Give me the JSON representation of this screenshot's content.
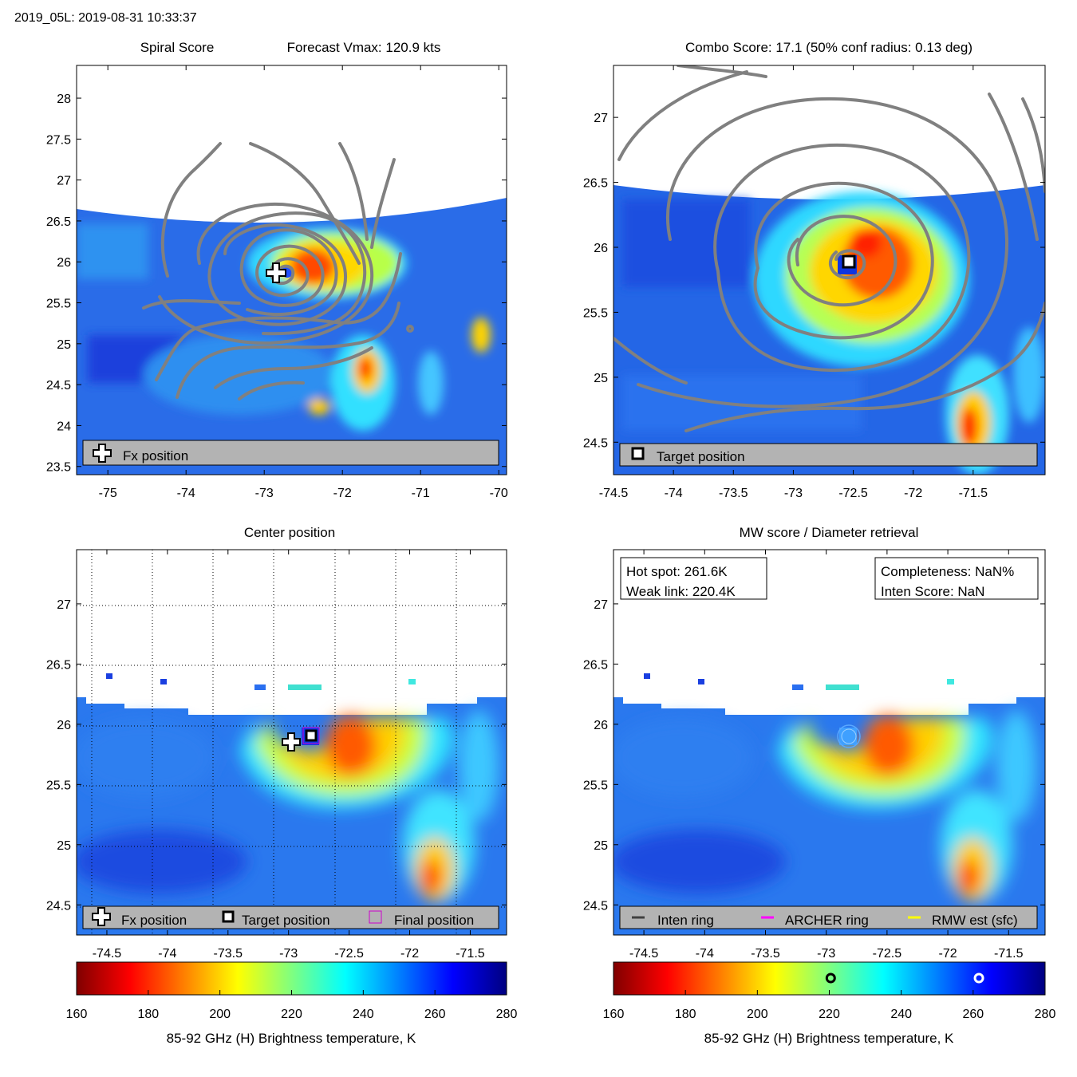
{
  "figure": {
    "header": "2019_05L: 2019-08-31 10:33:37",
    "colorbar_label": "85-92 GHz (H) Brightness temperature, K",
    "colorbar_ticks": [
      160,
      180,
      200,
      220,
      240,
      260,
      280
    ]
  },
  "panels": {
    "spiral": {
      "title_left": "Spiral Score",
      "title_right": "Forecast Vmax: 120.9 kts",
      "legend": [
        "Fx position"
      ]
    },
    "combo": {
      "title": "Combo Score: 17.1  (50% conf radius: 0.13 deg)",
      "legend": [
        "Target position"
      ]
    },
    "center": {
      "title": "Center position",
      "legend": [
        "Fx position",
        "Target position",
        "Final position"
      ]
    },
    "mw": {
      "title": "MW score / Diameter retrieval",
      "info_left": [
        "Hot spot: 261.6K",
        "Weak link: 220.4K"
      ],
      "info_right": [
        "Completeness: NaN%",
        "Inten Score: NaN"
      ],
      "legend": [
        "Inten ring",
        "ARCHER ring",
        "RMW est (sfc)"
      ]
    }
  },
  "colors": {
    "contour": "#808080",
    "frame": "#000000",
    "legend_bg": "#b3b3b3",
    "inten_ring": "#404040",
    "archer_ring": "#ff00ff",
    "rmw_ring": "#ffff00"
  },
  "chart_data": [
    {
      "type": "heatmap",
      "name": "spiral-score-panel",
      "title": "Spiral Score",
      "xlim": [
        -75.4,
        -69.9
      ],
      "ylim": [
        23.4,
        28.4
      ],
      "xticks": [
        -75,
        -74,
        -73,
        -72,
        -71,
        -70
      ],
      "yticks": [
        23.5,
        24,
        24.5,
        25,
        25.5,
        26,
        26.5,
        27,
        27.5,
        28
      ],
      "overlay": "gray forecast contours",
      "markers": [
        {
          "label": "Fx position",
          "lon": -72.82,
          "lat": 25.86
        }
      ]
    },
    {
      "type": "heatmap",
      "name": "combo-score-panel",
      "title": "Combo Score: 17.1  (50% conf radius: 0.13 deg)",
      "xlim": [
        -74.5,
        -70.9
      ],
      "ylim": [
        24.25,
        27.4
      ],
      "xticks": [
        -74.5,
        -74,
        -73.5,
        -73,
        -72.5,
        -72,
        -71.5
      ],
      "yticks": [
        24.5,
        25,
        25.5,
        26,
        26.5,
        27
      ],
      "overlay": "gray combo contours",
      "markers": [
        {
          "label": "Target position",
          "lon": -72.68,
          "lat": 25.91
        }
      ]
    },
    {
      "type": "heatmap",
      "name": "center-position-panel",
      "title": "Center position",
      "xlim": [
        -74.75,
        -71.2
      ],
      "ylim": [
        24.25,
        27.45
      ],
      "xticks": [
        -74.5,
        -74,
        -73.5,
        -73,
        -72.5,
        -72,
        -71.5
      ],
      "yticks": [
        24.5,
        25,
        25.5,
        26,
        26.5,
        27
      ],
      "grid": true,
      "markers": [
        {
          "label": "Fx position",
          "lon": -72.82,
          "lat": 25.86
        },
        {
          "label": "Target position",
          "lon": -72.68,
          "lat": 25.91
        },
        {
          "label": "Final position",
          "lon": -72.68,
          "lat": 25.91
        }
      ]
    },
    {
      "type": "heatmap",
      "name": "mw-score-panel",
      "title": "MW score / Diameter retrieval",
      "xlim": [
        -74.75,
        -71.2
      ],
      "ylim": [
        24.25,
        27.45
      ],
      "xticks": [
        -74.5,
        -74,
        -73.5,
        -73,
        -72.5,
        -72,
        -71.5
      ],
      "yticks": [
        24.5,
        25,
        25.5,
        26,
        26.5,
        27
      ],
      "rings_center": {
        "lon": -72.68,
        "lat": 25.91
      },
      "colorbar_markers": [
        {
          "label": "Weak link",
          "value": 220.4
        },
        {
          "label": "Hot spot",
          "value": 261.6
        }
      ]
    }
  ]
}
